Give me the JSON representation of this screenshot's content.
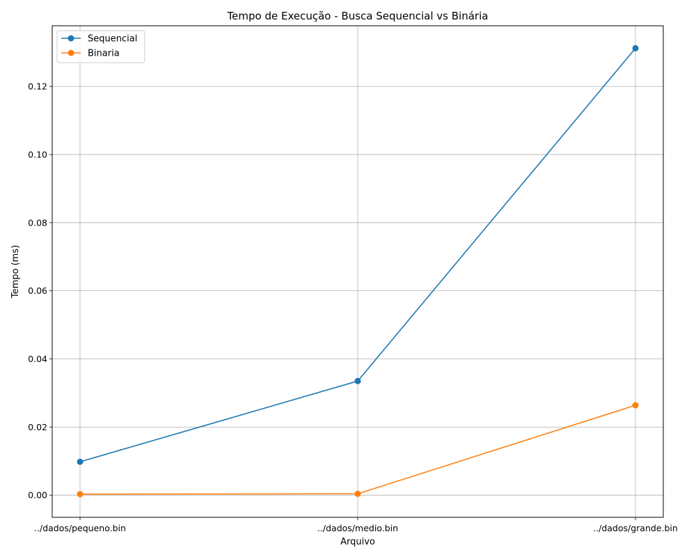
{
  "chart_data": {
    "type": "line",
    "title": "Tempo de Execução - Busca Sequencial vs Binária",
    "xlabel": "Arquivo",
    "ylabel": "Tempo (ms)",
    "categories": [
      "../dados/pequeno.bin",
      "../dados/medio.bin",
      "../dados/grande.bin"
    ],
    "series": [
      {
        "name": "Sequencial",
        "color": "#1f77b4",
        "values": [
          0.0098,
          0.0335,
          0.1312
        ]
      },
      {
        "name": "Binaria",
        "color": "#ff7f0e",
        "values": [
          0.0003,
          0.0004,
          0.0264
        ]
      }
    ],
    "ylim": [
      -0.0065,
      0.1378
    ],
    "yticks": [
      0.0,
      0.02,
      0.04,
      0.06,
      0.08,
      0.1,
      0.12
    ],
    "ytick_labels": [
      "0.00",
      "0.02",
      "0.04",
      "0.06",
      "0.08",
      "0.10",
      "0.12"
    ],
    "grid": true,
    "legend_position": "top-left"
  }
}
